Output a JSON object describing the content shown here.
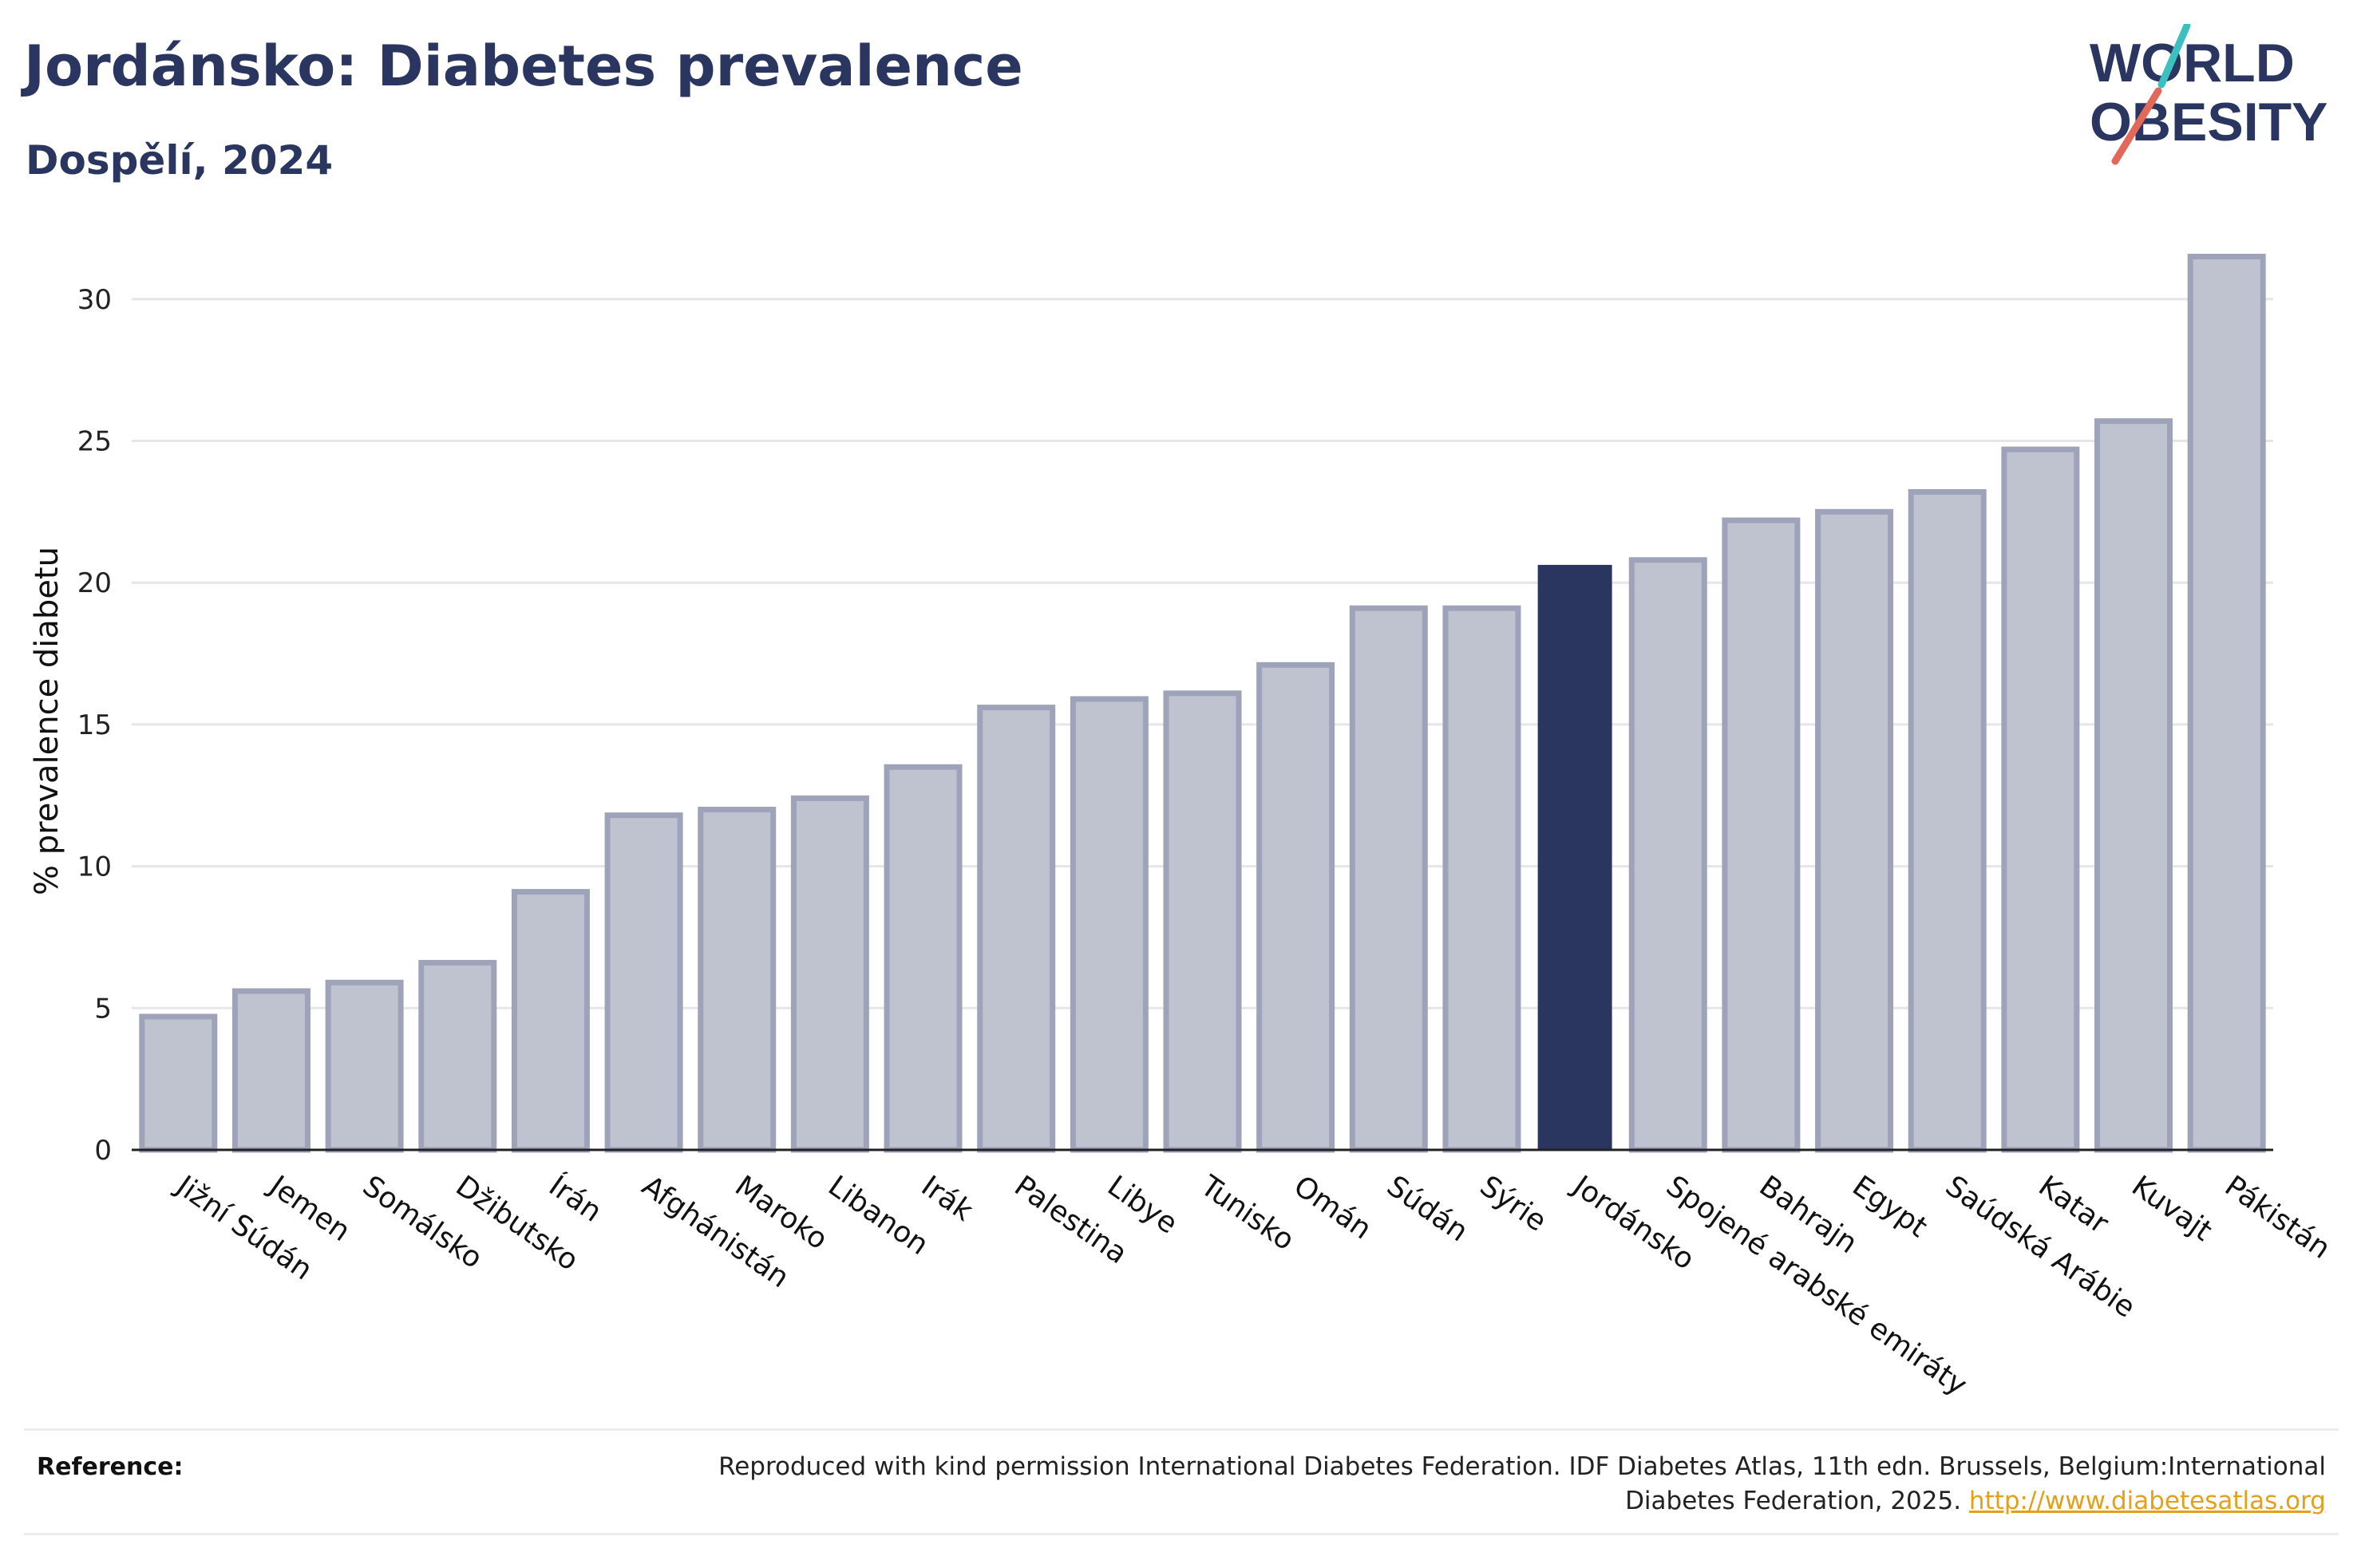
{
  "header": {
    "title": "Jordánsko: Diabetes prevalence",
    "subtitle": "Dospělí, 2024"
  },
  "logo": {
    "line1": "WORLD",
    "line2": "OBESITY",
    "colors": {
      "text": "#2a3560",
      "slash_top": "#3bbfbf",
      "slash_bottom": "#e2685a"
    }
  },
  "chart_data": {
    "type": "bar",
    "ylabel": "% prevalence diabetu",
    "xlabel": "",
    "ylim": [
      0,
      32.5
    ],
    "yticks": [
      0,
      5,
      10,
      15,
      20,
      25,
      30
    ],
    "grid": true,
    "highlight": "Jordánsko",
    "colors": {
      "bar": "#bfc2cf",
      "bar_border": "#9ea3ba",
      "highlight": "#2a3560",
      "grid": "#e6e6ea",
      "axis": "#222222"
    },
    "categories": [
      "Jižní Súdán",
      "Jemen",
      "Somálsko",
      "Džibutsko",
      "Írán",
      "Afghánistán",
      "Maroko",
      "Libanon",
      "Irák",
      "Palestina",
      "Libye",
      "Tunisko",
      "Omán",
      "Súdán",
      "Sýrie",
      "Jordánsko",
      "Spojené arabské emiráty",
      "Bahrajn",
      "Egypt",
      "Saúdská Arábie",
      "Katar",
      "Kuvajt",
      "Pákistán"
    ],
    "values": [
      4.7,
      5.6,
      5.9,
      6.6,
      9.1,
      11.8,
      12.0,
      12.4,
      13.5,
      15.6,
      15.9,
      16.1,
      17.1,
      19.1,
      19.1,
      20.6,
      20.8,
      22.2,
      22.5,
      23.2,
      24.7,
      25.7,
      31.5
    ]
  },
  "footer": {
    "label": "Reference:",
    "text": "Reproduced with kind permission International Diabetes Federation. IDF Diabetes Atlas, 11th edn. Brussels, Belgium:International Diabetes Federation, 2025.",
    "link": "http://www.diabetesatlas.org"
  }
}
